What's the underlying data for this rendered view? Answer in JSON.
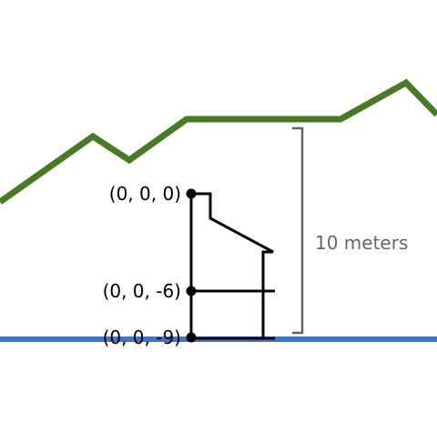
{
  "diagram": {
    "points": [
      {
        "id": "top",
        "label": "(0, 0, 0)"
      },
      {
        "id": "mid",
        "label": "(0, 0, -6)"
      },
      {
        "id": "bottom",
        "label": "(0, 0, -9)"
      }
    ],
    "dimension": {
      "label": "10 meters"
    },
    "colors": {
      "terrain": "#4a7a26",
      "water": "#4472c4",
      "structure": "#000000",
      "dimension": "#666666"
    }
  }
}
